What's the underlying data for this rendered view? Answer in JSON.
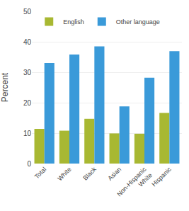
{
  "chart_data": {
    "type": "bar",
    "categories": [
      "Total",
      "White",
      "Black",
      "Asian",
      "Non-Hispanic\nWhite",
      "Hispanic"
    ],
    "series": [
      {
        "name": "English",
        "color": "#a8b832",
        "values": [
          11.4,
          10.8,
          14.7,
          9.9,
          9.8,
          16.6
        ]
      },
      {
        "name": "Other language",
        "color": "#3a9ad9",
        "values": [
          33.0,
          35.8,
          38.5,
          18.8,
          28.2,
          36.9
        ]
      }
    ],
    "ylabel": "Percent",
    "ylim": [
      0,
      50
    ],
    "yticks": [
      0,
      10,
      20,
      30,
      40,
      50
    ],
    "grid": true,
    "legend": "upper left"
  }
}
